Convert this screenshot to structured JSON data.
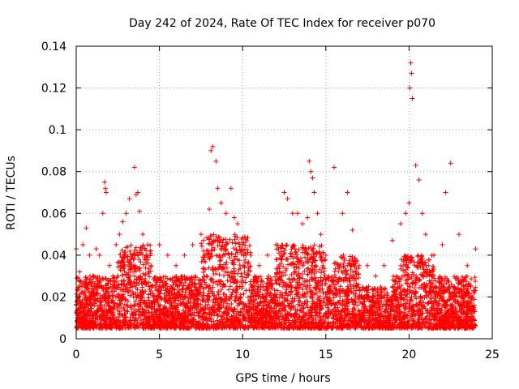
{
  "chart_data": {
    "type": "scatter",
    "title": "Day 242 of 2024, Rate Of TEC Index for receiver p070",
    "xlabel": "GPS time / hours",
    "ylabel": "ROTI / TECUs",
    "xlim": [
      0,
      25
    ],
    "ylim": [
      0,
      0.14
    ],
    "xticks": [
      0,
      5,
      10,
      15,
      20,
      25
    ],
    "xtick_labels": [
      "0",
      "5",
      "10",
      "15",
      "20",
      "25"
    ],
    "yticks": [
      0,
      0.02,
      0.04,
      0.06,
      0.08,
      0.1,
      0.12,
      0.14
    ],
    "ytick_labels": [
      "0",
      "0.02",
      "0.04",
      "0.06",
      "0.08",
      "0.1",
      "0.12",
      "0.14"
    ],
    "grid": true,
    "marker": "plus",
    "marker_color": "#ff0000",
    "series": [
      {
        "name": "ROTI",
        "note": "dense band of points approx 0.005-0.035 TECU across 0-24 h; representative sample and notable peaks",
        "x": [
          0.0,
          0.2,
          0.4,
          0.6,
          0.8,
          1.0,
          1.2,
          1.4,
          1.6,
          1.7,
          1.75,
          1.8,
          2.0,
          2.2,
          2.4,
          2.6,
          2.8,
          3.0,
          3.2,
          3.5,
          3.6,
          3.7,
          3.8,
          4.0,
          4.2,
          4.5,
          5.0,
          5.5,
          6.0,
          6.5,
          7.0,
          7.5,
          8.0,
          8.1,
          8.2,
          8.4,
          8.5,
          8.7,
          9.0,
          9.3,
          9.5,
          9.7,
          10.0,
          10.2,
          10.5,
          11.0,
          11.5,
          12.0,
          12.5,
          12.7,
          13.0,
          13.3,
          13.6,
          13.9,
          14.0,
          14.1,
          14.2,
          14.3,
          14.5,
          14.7,
          15.0,
          15.5,
          15.8,
          16.0,
          16.3,
          16.6,
          17.0,
          17.5,
          18.0,
          18.5,
          19.0,
          19.5,
          19.8,
          20.0,
          20.05,
          20.1,
          20.15,
          20.2,
          20.4,
          20.6,
          20.8,
          21.0,
          21.5,
          22.0,
          22.2,
          22.5,
          23.0,
          23.5,
          24.0
        ],
        "y": [
          0.043,
          0.032,
          0.045,
          0.053,
          0.04,
          0.03,
          0.043,
          0.04,
          0.06,
          0.075,
          0.072,
          0.07,
          0.035,
          0.03,
          0.045,
          0.05,
          0.056,
          0.06,
          0.067,
          0.082,
          0.069,
          0.07,
          0.061,
          0.05,
          0.04,
          0.035,
          0.045,
          0.04,
          0.035,
          0.04,
          0.045,
          0.05,
          0.062,
          0.09,
          0.092,
          0.085,
          0.072,
          0.065,
          0.06,
          0.072,
          0.058,
          0.055,
          0.045,
          0.04,
          0.04,
          0.035,
          0.04,
          0.045,
          0.07,
          0.067,
          0.06,
          0.06,
          0.055,
          0.058,
          0.085,
          0.08,
          0.077,
          0.07,
          0.06,
          0.05,
          0.04,
          0.082,
          0.035,
          0.06,
          0.07,
          0.052,
          0.035,
          0.035,
          0.03,
          0.035,
          0.047,
          0.055,
          0.06,
          0.065,
          0.12,
          0.132,
          0.127,
          0.115,
          0.083,
          0.076,
          0.06,
          0.05,
          0.04,
          0.045,
          0.07,
          0.084,
          0.05,
          0.035,
          0.043
        ]
      }
    ]
  }
}
